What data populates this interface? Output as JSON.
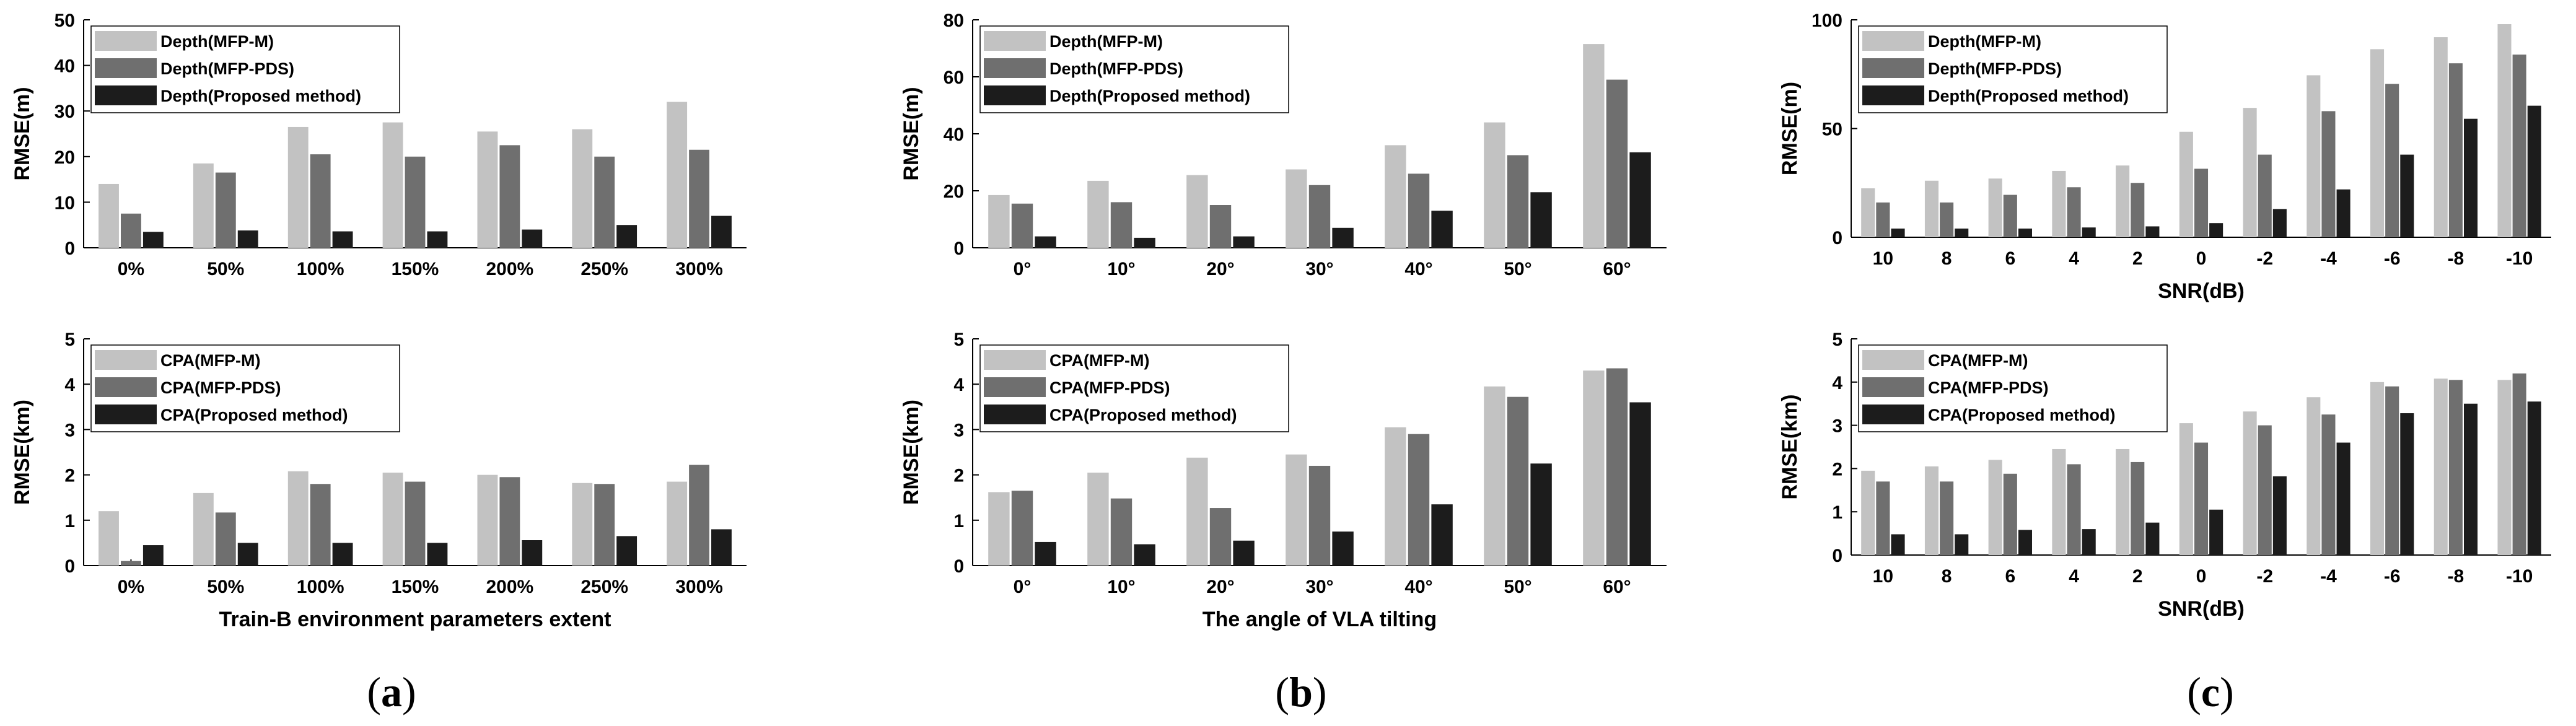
{
  "colors": {
    "series": [
      "#c2c2c2",
      "#6f6f6f",
      "#1c1c1c"
    ],
    "axis": "#000000",
    "background": "#ffffff"
  },
  "captions": [
    {
      "open": "(",
      "letter": "a",
      "close": ")"
    },
    {
      "open": "(",
      "letter": "b",
      "close": ")"
    },
    {
      "open": "(",
      "letter": "c",
      "close": ")"
    }
  ],
  "chart_data": [
    {
      "type": "bar",
      "panel": "a-top",
      "categories": [
        "0%",
        "50%",
        "100%",
        "150%",
        "200%",
        "250%",
        "300%"
      ],
      "series": [
        {
          "name": "Depth(MFP-M)",
          "values": [
            14,
            18.5,
            26.5,
            27.5,
            25.5,
            26,
            32
          ]
        },
        {
          "name": "Depth(MFP-PDS)",
          "values": [
            7.5,
            16.5,
            20.5,
            20,
            22.5,
            20,
            21.5
          ]
        },
        {
          "name": "Depth(Proposed method)",
          "values": [
            3.5,
            3.8,
            3.6,
            3.6,
            4,
            5,
            7
          ]
        }
      ],
      "ylabel": "RMSE(m)",
      "xlabel": "",
      "ylim": [
        0,
        50
      ],
      "yticks": [
        0,
        10,
        20,
        30,
        40,
        50
      ],
      "legend": "top-left"
    },
    {
      "type": "bar",
      "panel": "a-bottom",
      "categories": [
        "0%",
        "50%",
        "100%",
        "150%",
        "200%",
        "250%",
        "300%"
      ],
      "series": [
        {
          "name": "CPA(MFP-M)",
          "values": [
            1.2,
            1.6,
            2.08,
            2.05,
            2.0,
            1.82,
            1.85
          ]
        },
        {
          "name": "CPA(MFP-PDS)",
          "values": [
            0.1,
            1.17,
            1.8,
            1.85,
            1.95,
            1.8,
            2.22
          ]
        },
        {
          "name": "CPA(Proposed method)",
          "values": [
            0.45,
            0.5,
            0.5,
            0.5,
            0.56,
            0.65,
            0.8
          ]
        }
      ],
      "ylabel": "RMSE(km)",
      "xlabel": "Train-B environment parameters extent",
      "ylim": [
        0,
        5
      ],
      "yticks": [
        0,
        1,
        2,
        3,
        4,
        5
      ],
      "legend": "top-left"
    },
    {
      "type": "bar",
      "panel": "b-top",
      "categories": [
        "0°",
        "10°",
        "20°",
        "30°",
        "40°",
        "50°",
        "60°"
      ],
      "series": [
        {
          "name": "Depth(MFP-M)",
          "values": [
            18.5,
            23.5,
            25.5,
            27.5,
            36,
            44,
            71.5
          ]
        },
        {
          "name": "Depth(MFP-PDS)",
          "values": [
            15.5,
            16,
            15,
            22,
            26,
            32.5,
            59
          ]
        },
        {
          "name": "Depth(Proposed method)",
          "values": [
            4,
            3.5,
            4,
            7,
            13,
            19.5,
            33.5
          ]
        }
      ],
      "ylabel": "RMSE(m)",
      "xlabel": "",
      "ylim": [
        0,
        80
      ],
      "yticks": [
        0,
        20,
        40,
        60,
        80
      ],
      "legend": "top-left"
    },
    {
      "type": "bar",
      "panel": "b-bottom",
      "categories": [
        "0°",
        "10°",
        "20°",
        "30°",
        "40°",
        "50°",
        "60°"
      ],
      "series": [
        {
          "name": "CPA(MFP-M)",
          "values": [
            1.62,
            2.05,
            2.38,
            2.45,
            3.05,
            3.95,
            4.3
          ]
        },
        {
          "name": "CPA(MFP-PDS)",
          "values": [
            1.65,
            1.48,
            1.27,
            2.2,
            2.9,
            3.72,
            4.35
          ]
        },
        {
          "name": "CPA(Proposed method)",
          "values": [
            0.52,
            0.47,
            0.55,
            0.75,
            1.35,
            2.25,
            3.6
          ]
        }
      ],
      "ylabel": "RMSE(km)",
      "xlabel": "The angle of VLA tilting",
      "ylim": [
        0,
        5
      ],
      "yticks": [
        0,
        1,
        2,
        3,
        4,
        5
      ],
      "legend": "top-left"
    },
    {
      "type": "bar",
      "panel": "c-top",
      "categories": [
        "10",
        "8",
        "6",
        "4",
        "2",
        "0",
        "-2",
        "-4",
        "-6",
        "-8",
        "-10"
      ],
      "series": [
        {
          "name": "Depth(MFP-M)",
          "values": [
            22.5,
            26,
            27,
            30.5,
            33,
            48.5,
            59.5,
            74.5,
            86.5,
            92,
            98
          ]
        },
        {
          "name": "Depth(MFP-PDS)",
          "values": [
            16,
            16,
            19.5,
            23,
            25,
            31.5,
            38,
            58,
            70.5,
            80,
            84
          ]
        },
        {
          "name": "Depth(Proposed method)",
          "values": [
            4,
            4,
            4,
            4.5,
            5,
            6.5,
            13,
            22,
            38,
            54.5,
            60.5
          ]
        }
      ],
      "ylabel": "RMSE(m)",
      "xlabel": "SNR(dB)",
      "ylim": [
        0,
        100
      ],
      "yticks": [
        0,
        50,
        100
      ],
      "legend": "top-left"
    },
    {
      "type": "bar",
      "panel": "c-bottom",
      "categories": [
        "10",
        "8",
        "6",
        "4",
        "2",
        "0",
        "-2",
        "-4",
        "-6",
        "-8",
        "-10"
      ],
      "series": [
        {
          "name": "CPA(MFP-M)",
          "values": [
            1.95,
            2.05,
            2.2,
            2.45,
            2.45,
            3.05,
            3.32,
            3.65,
            4.0,
            4.08,
            4.05
          ]
        },
        {
          "name": "CPA(MFP-PDS)",
          "values": [
            1.7,
            1.7,
            1.88,
            2.1,
            2.15,
            2.6,
            3.0,
            3.25,
            3.9,
            4.05,
            4.2
          ]
        },
        {
          "name": "CPA(Proposed method)",
          "values": [
            0.48,
            0.48,
            0.58,
            0.6,
            0.75,
            1.05,
            1.82,
            2.6,
            3.28,
            3.5,
            3.55
          ]
        }
      ],
      "ylabel": "RMSE(km)",
      "xlabel": "SNR(dB)",
      "ylim": [
        0,
        5
      ],
      "yticks": [
        0,
        1,
        2,
        3,
        4,
        5
      ],
      "legend": "top-left"
    }
  ]
}
